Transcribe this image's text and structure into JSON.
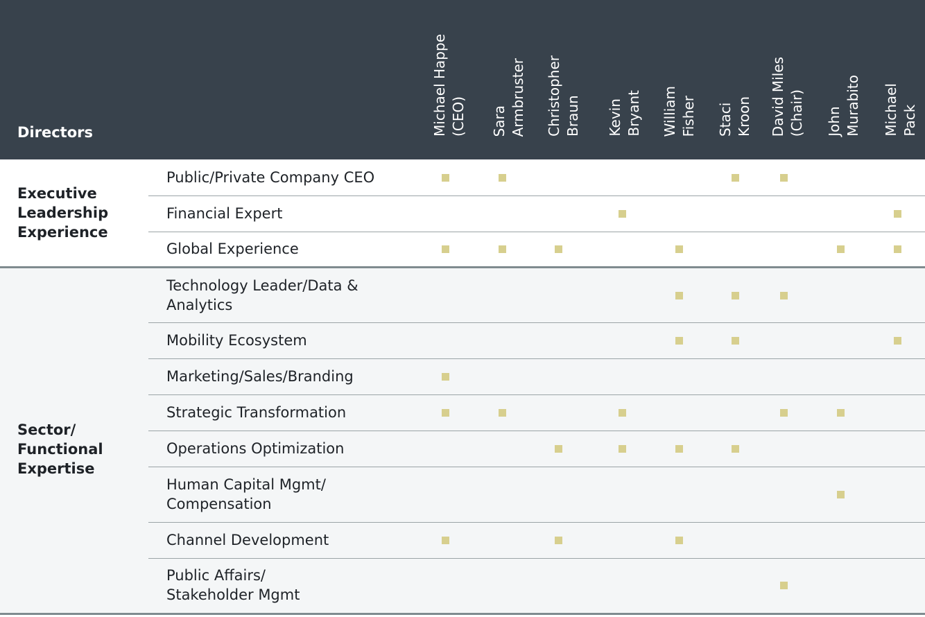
{
  "header": {
    "title": "Directors"
  },
  "directors": [
    {
      "name": [
        "Michael Happe",
        "(CEO)"
      ]
    },
    {
      "name": [
        "Sara",
        "Armbruster"
      ]
    },
    {
      "name": [
        "Christopher",
        "Braun"
      ]
    },
    {
      "name": [
        "Kevin",
        "Bryant"
      ]
    },
    {
      "name": [
        "William",
        "Fisher"
      ]
    },
    {
      "name": [
        "Staci",
        "Kroon"
      ]
    },
    {
      "name": [
        "David Miles",
        "(Chair)"
      ]
    },
    {
      "name": [
        "John",
        "Murabito"
      ]
    },
    {
      "name": [
        "Michael",
        "Pack"
      ]
    }
  ],
  "categories": [
    {
      "title": [
        "Executive",
        "Leadership",
        "Experience"
      ],
      "skills": [
        {
          "label": [
            "Public/Private Company CEO"
          ],
          "marks": [
            1,
            1,
            0,
            0,
            0,
            1,
            1,
            0,
            0
          ]
        },
        {
          "label": [
            "Financial Expert"
          ],
          "marks": [
            0,
            0,
            0,
            1,
            0,
            0,
            0,
            0,
            1
          ]
        },
        {
          "label": [
            "Global Experience"
          ],
          "marks": [
            1,
            1,
            1,
            0,
            1,
            0,
            0,
            1,
            1
          ]
        }
      ]
    },
    {
      "title": [
        "Sector/",
        "Functional",
        "Expertise"
      ],
      "skills": [
        {
          "label": [
            "Technology Leader/Data &",
            "Analytics"
          ],
          "marks": [
            0,
            0,
            0,
            0,
            1,
            1,
            1,
            0,
            0
          ]
        },
        {
          "label": [
            "Mobility Ecosystem"
          ],
          "marks": [
            0,
            0,
            0,
            0,
            1,
            1,
            0,
            0,
            1
          ]
        },
        {
          "label": [
            "Marketing/Sales/Branding"
          ],
          "marks": [
            1,
            0,
            0,
            0,
            0,
            0,
            0,
            0,
            0
          ]
        },
        {
          "label": [
            "Strategic Transformation"
          ],
          "marks": [
            1,
            1,
            0,
            1,
            0,
            0,
            1,
            1,
            0
          ]
        },
        {
          "label": [
            "Operations Optimization"
          ],
          "marks": [
            0,
            0,
            1,
            1,
            1,
            1,
            0,
            0,
            0
          ]
        },
        {
          "label": [
            "Human Capital Mgmt/",
            "Compensation"
          ],
          "marks": [
            0,
            0,
            0,
            0,
            0,
            0,
            0,
            1,
            0
          ]
        },
        {
          "label": [
            "Channel Development"
          ],
          "marks": [
            1,
            0,
            1,
            0,
            1,
            0,
            0,
            0,
            0
          ]
        },
        {
          "label": [
            "Public Affairs/",
            "Stakeholder Mgmt"
          ],
          "marks": [
            0,
            0,
            0,
            0,
            0,
            0,
            1,
            0,
            0
          ]
        }
      ]
    }
  ],
  "colors": {
    "header_bg": "#38424c",
    "mark": "#d7cf8e",
    "alt_bg": "#f4f6f7"
  }
}
